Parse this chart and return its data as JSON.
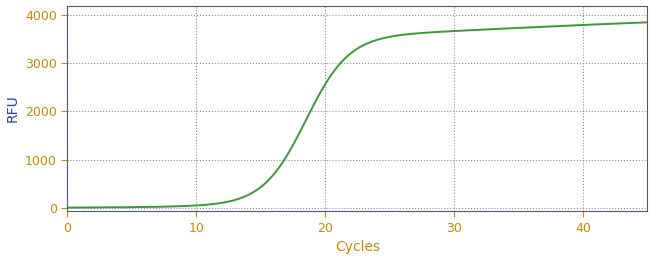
{
  "xlabel": "Cycles",
  "ylabel": "RFU",
  "xlim": [
    0,
    45
  ],
  "ylim": [
    -80,
    4200
  ],
  "xticks": [
    0,
    10,
    20,
    30,
    40
  ],
  "yticks": [
    0,
    1000,
    2000,
    3000,
    4000
  ],
  "line_color": "#3a9a3a",
  "line_width": 1.4,
  "background_color": "#ffffff",
  "grid_color": "#8888aa",
  "tick_color": "#cc8800",
  "label_color": "#cc8800",
  "ylabel_color": "#2244aa",
  "xlabel_fontsize": 10,
  "ylabel_fontsize": 10,
  "tick_fontsize": 9,
  "spine_color": "#555577",
  "sigmoid_L": 3500,
  "sigmoid_k": 0.6,
  "sigmoid_x0": 18.5,
  "second_L": 500,
  "second_k": 0.1,
  "second_x0": 35.0
}
